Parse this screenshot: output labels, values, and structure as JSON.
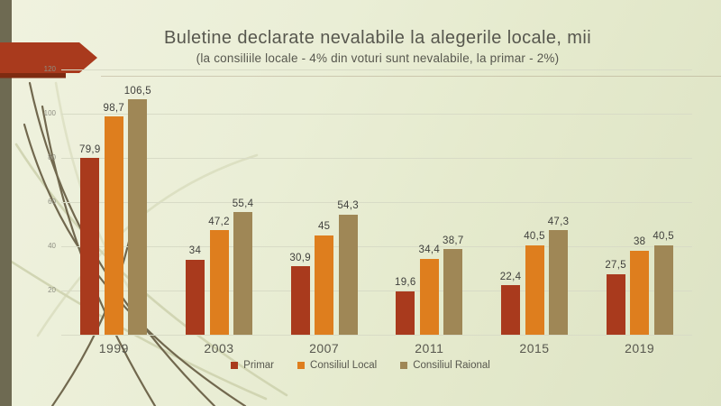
{
  "slide": {
    "title": "Buletine declarate nevalabile la alegerile locale, mii",
    "subtitle": "(la consiliile locale - 4% din voturi sunt nevalabile, la primar - 2%)"
  },
  "theme": {
    "background": "#e9edd5",
    "accent_red": "#a93a1d",
    "accent_red_dark": "#7e2b11",
    "stripe_olive": "#6e6a52",
    "curve_dark": "#6b6147",
    "curve_light": "#cdd1ad",
    "grid_color": "#d8dbc6",
    "title_color": "#57574e",
    "value_label_color": "#3f3f3c",
    "ytick_color": "#8e8e82"
  },
  "chart_data": {
    "type": "bar",
    "title": "Buletine declarate nevalabile la alegerile locale, mii",
    "subtitle": "(la consiliile locale - 4% din voturi sunt nevalabile, la primar - 2%)",
    "categories": [
      "1999",
      "2003",
      "2007",
      "2011",
      "2015",
      "2019"
    ],
    "series": [
      {
        "name": "Primar",
        "color": "#a93a1d",
        "values": [
          79.9,
          34,
          30.9,
          19.6,
          22.4,
          27.5
        ]
      },
      {
        "name": "Consiliul Local",
        "color": "#de7e1e",
        "values": [
          98.7,
          47.2,
          45,
          34.4,
          40.5,
          38
        ]
      },
      {
        "name": "Consiliul Raional",
        "color": "#9f8756",
        "values": [
          106.5,
          55.4,
          54.3,
          38.7,
          47.3,
          40.5
        ]
      }
    ],
    "xlabel": "",
    "ylabel": "",
    "ylim": [
      0,
      120
    ],
    "yticks": [
      20,
      40,
      60,
      80,
      100,
      120
    ],
    "grid": true,
    "legend_position": "bottom",
    "decimal_separator": ","
  }
}
